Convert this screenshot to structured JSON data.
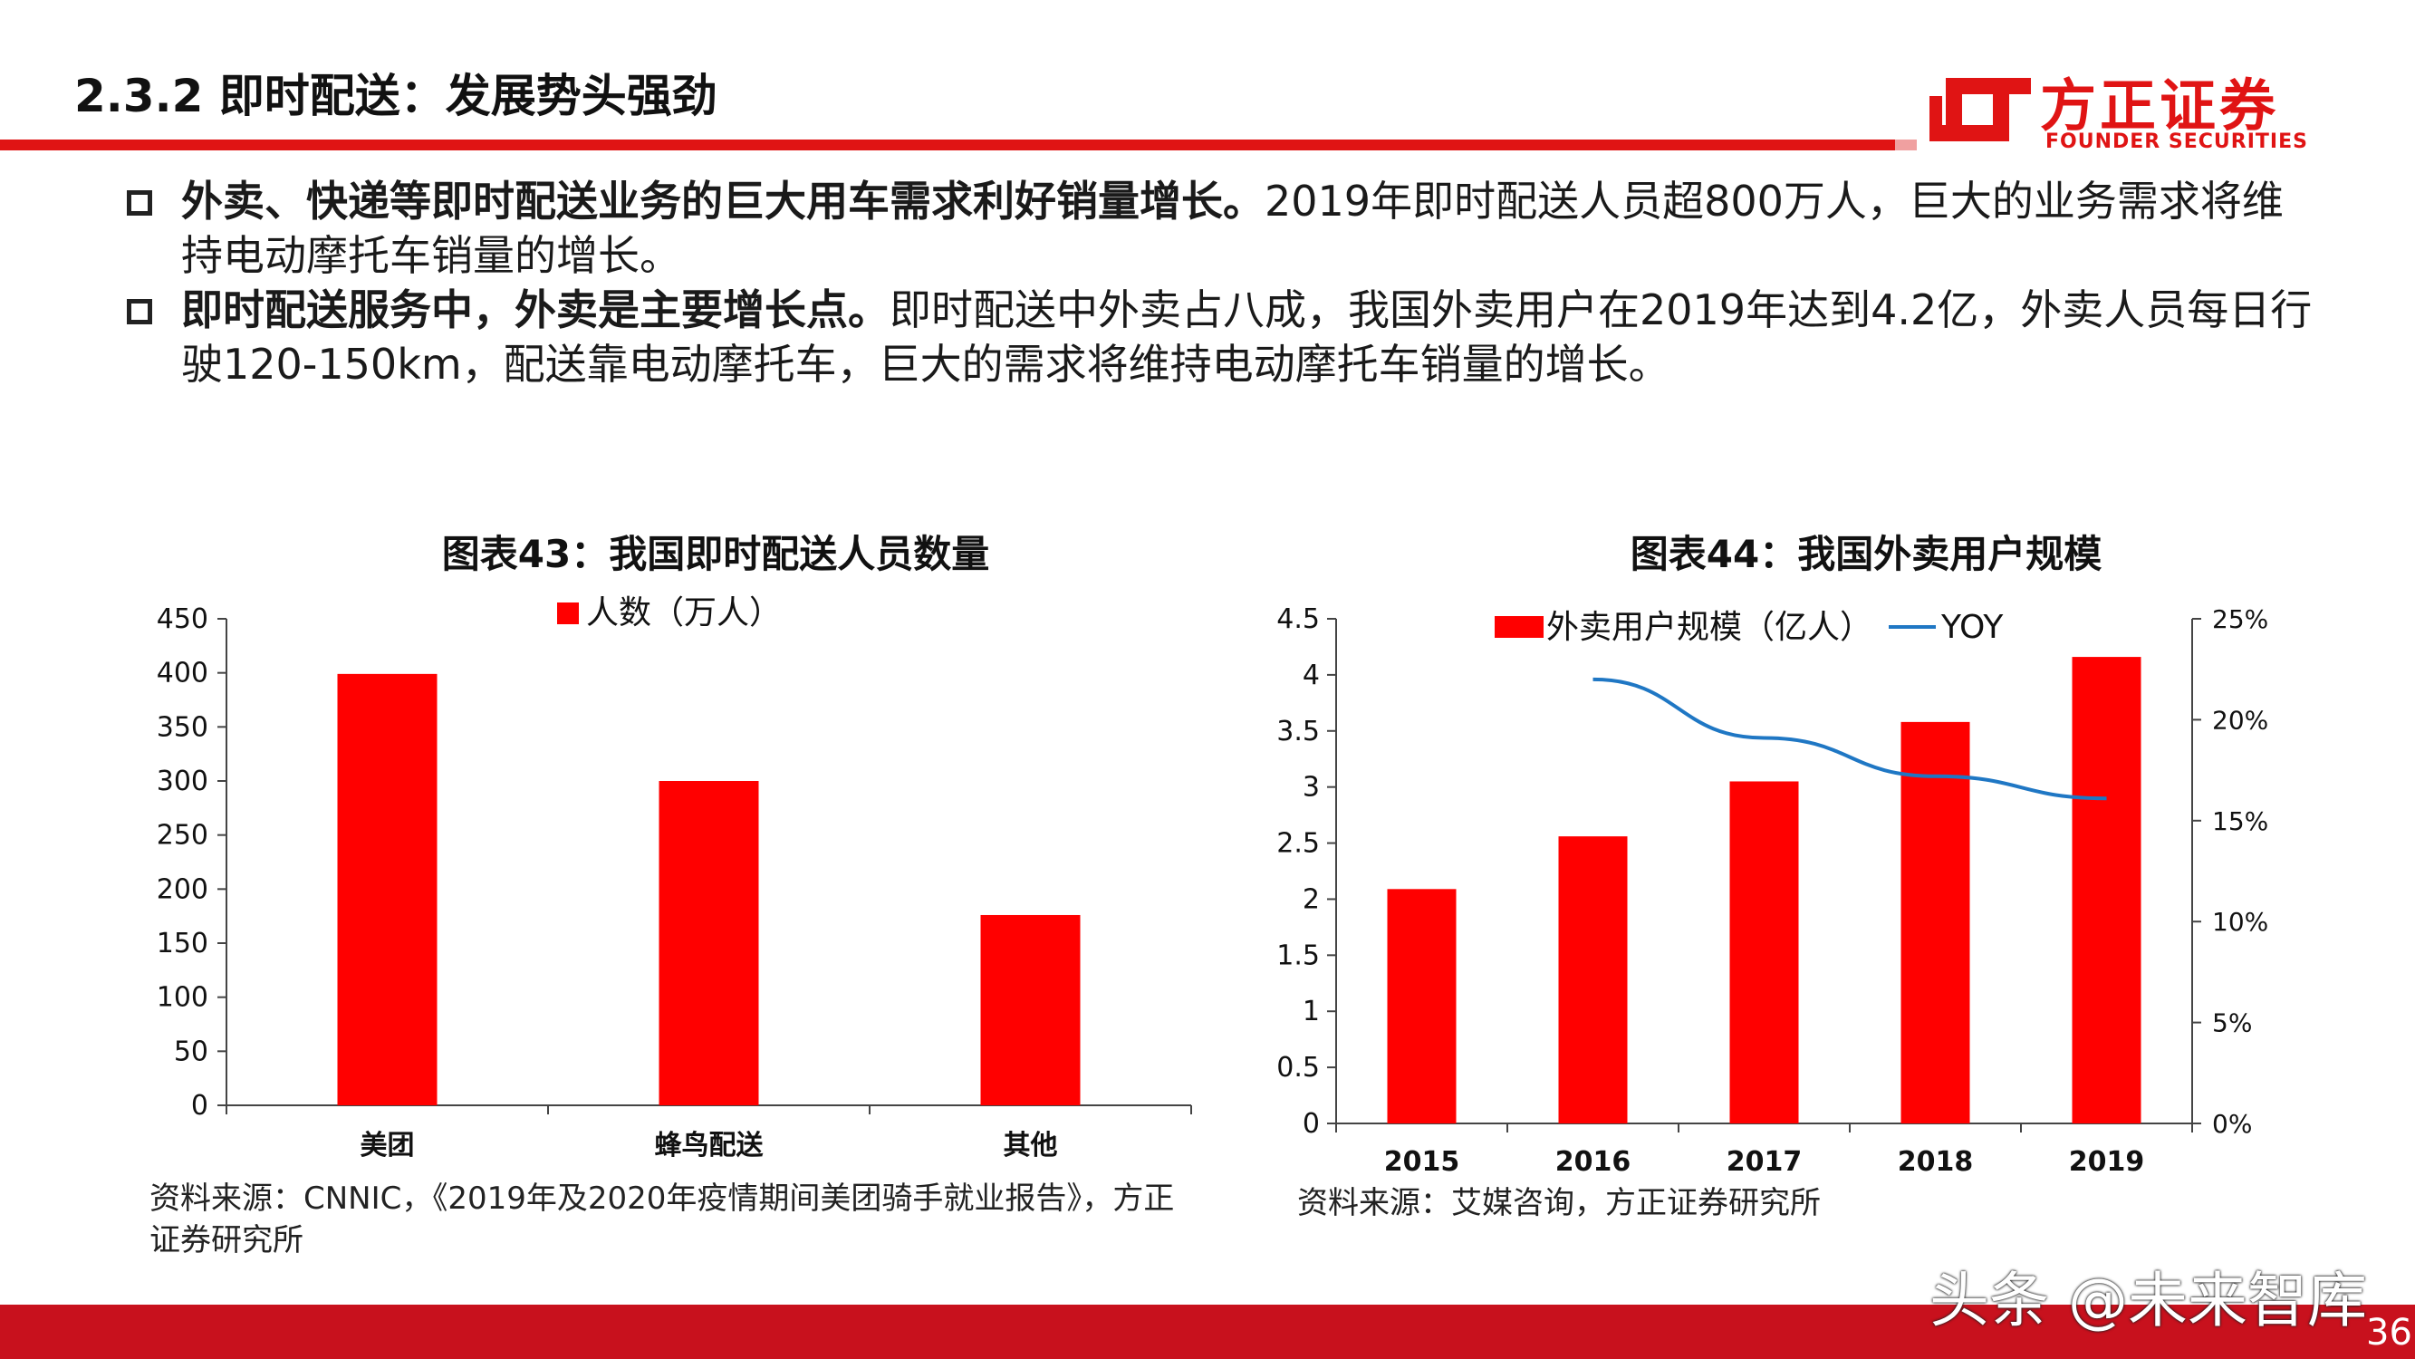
{
  "header": {
    "title": "2.3.2 即时配送：发展势头强劲",
    "logo_cn": "方正证券",
    "logo_en": "FOUNDER SECURITIES"
  },
  "bullets": [
    {
      "bold": "外卖、快递等即时配送业务的巨大用车需求利好销量增长。",
      "text": "2019年即时配送人员超800万人，巨大的业务需求将维持电动摩托车销量的增长。"
    },
    {
      "bold": "即时配送服务中，外卖是主要增长点。",
      "text": "即时配送中外卖占八成，我国外卖用户在2019年达到4.2亿，外卖人员每日行驶120-150km，配送靠电动摩托车，巨大的需求将维持电动摩托车销量的增长。"
    }
  ],
  "chart_data": [
    {
      "type": "bar",
      "title": "图表43：我国即时配送人员数量",
      "categories": [
        "美团",
        "蜂鸟配送",
        "其他"
      ],
      "series": [
        {
          "name": "人数（万人）",
          "values": [
            399,
            300,
            176
          ]
        }
      ],
      "ylim": [
        0,
        450
      ],
      "yticks": [
        "0",
        "50",
        "100",
        "150",
        "200",
        "250",
        "300",
        "350",
        "400",
        "450"
      ],
      "legend_position": "top",
      "grid": false,
      "colors": {
        "bar": "#ff0000"
      },
      "source": "资料来源：CNNIC，《2019年及2020年疫情期间美团骑手就业报告》，方正证券研究所"
    },
    {
      "type": "bar",
      "title": "图表44：我国外卖用户规模",
      "categories": [
        "2015",
        "2016",
        "2017",
        "2018",
        "2019"
      ],
      "series": [
        {
          "name": "外卖用户规模（亿人）",
          "type": "bar",
          "axis": "left",
          "values": [
            2.09,
            2.56,
            3.05,
            3.58,
            4.16
          ]
        },
        {
          "name": "YOY",
          "type": "line",
          "axis": "right",
          "values": [
            null,
            22.0,
            19.1,
            17.2,
            16.1
          ]
        }
      ],
      "ylim": [
        0,
        4.5
      ],
      "yticks": [
        "0",
        "0.5",
        "1",
        "1.5",
        "2",
        "2.5",
        "3",
        "3.5",
        "4",
        "4.5"
      ],
      "y2lim": [
        0,
        25
      ],
      "y2ticks": [
        "0%",
        "5%",
        "10%",
        "15%",
        "20%",
        "25%"
      ],
      "legend_position": "top",
      "grid": false,
      "colors": {
        "bar": "#ff0000",
        "line": "#1f77c4"
      },
      "source": "资料来源：艾媒咨询，方正证券研究所"
    }
  ],
  "footer": {
    "watermark": "头条 @未来智库",
    "page_number": "36"
  }
}
